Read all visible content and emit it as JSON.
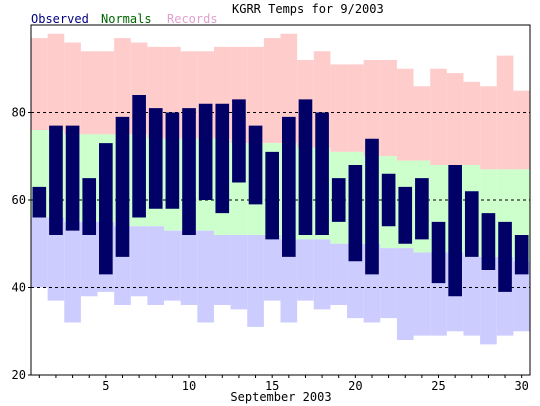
{
  "chart_data": {
    "type": "bar",
    "title": "KGRR Temps for 9/2003",
    "xlabel": "September 2003",
    "ylabel": "",
    "legend": [
      {
        "label": "Observed",
        "color": "#000080"
      },
      {
        "label": "Normals",
        "color": "#006400"
      },
      {
        "label": "Records",
        "color": "#e0a0d0"
      }
    ],
    "legend_position": "top-left",
    "xlim": [
      0.5,
      30.5
    ],
    "ylim": [
      20,
      100
    ],
    "x_ticks": [
      5,
      10,
      15,
      20,
      25,
      30
    ],
    "y_ticks": [
      20,
      40,
      60,
      80
    ],
    "grid_y": [
      40,
      60,
      80
    ],
    "days": [
      1,
      2,
      3,
      4,
      5,
      6,
      7,
      8,
      9,
      10,
      11,
      12,
      13,
      14,
      15,
      16,
      17,
      18,
      19,
      20,
      21,
      22,
      23,
      24,
      25,
      26,
      27,
      28,
      29,
      30
    ],
    "record_high": [
      97,
      98,
      96,
      94,
      94,
      97,
      96,
      95,
      95,
      94,
      94,
      95,
      95,
      95,
      97,
      98,
      92,
      94,
      91,
      91,
      92,
      92,
      90,
      86,
      90,
      89,
      87,
      86,
      93,
      85
    ],
    "normal_high": [
      76,
      76,
      75,
      75,
      75,
      75,
      75,
      74,
      74,
      74,
      74,
      74,
      73,
      73,
      73,
      73,
      72,
      72,
      71,
      71,
      70,
      70,
      69,
      69,
      68,
      68,
      68,
      67,
      67,
      67
    ],
    "normal_low": [
      56,
      56,
      55,
      55,
      55,
      54,
      54,
      54,
      53,
      53,
      53,
      52,
      52,
      52,
      52,
      51,
      51,
      51,
      50,
      50,
      50,
      49,
      49,
      48,
      48,
      48,
      47,
      47,
      47,
      46
    ],
    "record_low": [
      40,
      37,
      32,
      38,
      39,
      36,
      38,
      36,
      37,
      36,
      32,
      36,
      35,
      31,
      37,
      32,
      37,
      35,
      36,
      33,
      32,
      33,
      28,
      29,
      29,
      30,
      29,
      27,
      29,
      30
    ],
    "observed_high": [
      63,
      77,
      77,
      65,
      73,
      79,
      84,
      81,
      80,
      81,
      82,
      82,
      83,
      77,
      71,
      79,
      83,
      80,
      65,
      68,
      74,
      66,
      63,
      65,
      55,
      68,
      62,
      57,
      55,
      52
    ],
    "observed_low": [
      56,
      52,
      53,
      52,
      43,
      47,
      56,
      58,
      58,
      52,
      60,
      57,
      64,
      59,
      51,
      47,
      52,
      52,
      55,
      46,
      43,
      54,
      50,
      51,
      41,
      38,
      47,
      44,
      39,
      43
    ],
    "colors": {
      "record_band": "#ffcccc",
      "normal_band": "#ccffcc",
      "low_band": "#ccccff",
      "observed_bar": "#000066",
      "axis": "#000000",
      "grid": "#000000"
    }
  }
}
